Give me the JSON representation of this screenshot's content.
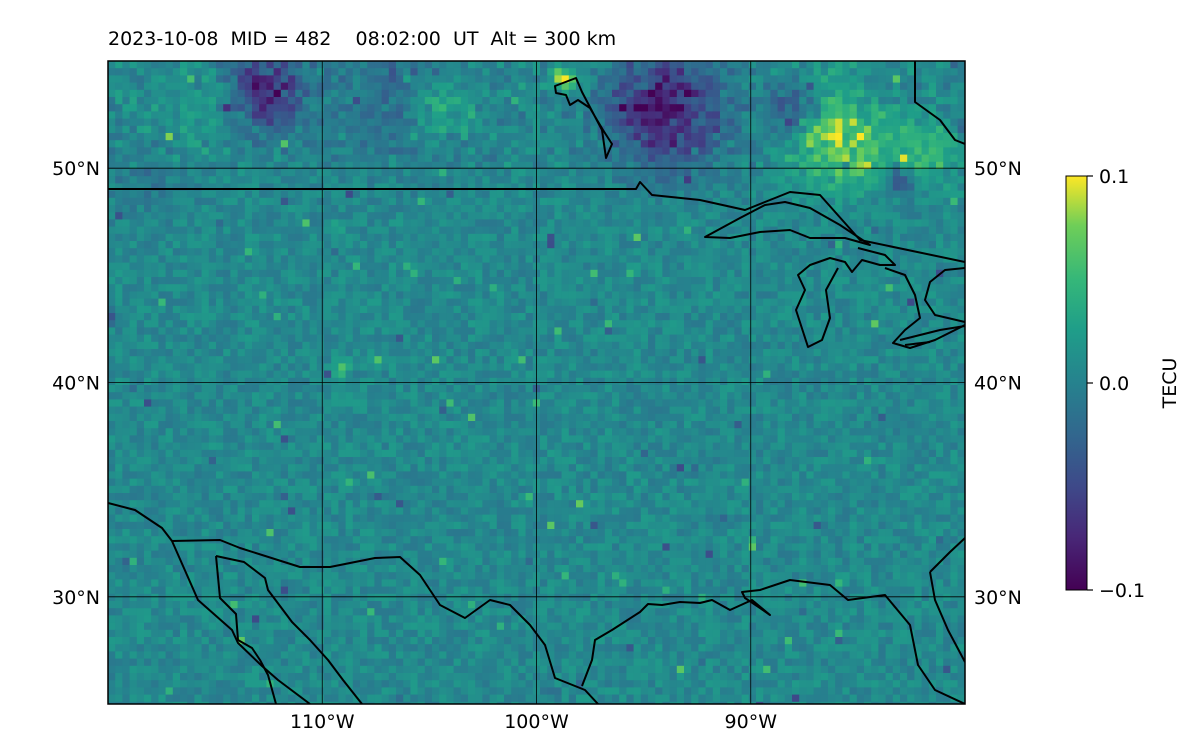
{
  "title": "2023-10-08  MID = 482    08:02:00  UT  Alt = 300 km",
  "map": {
    "lon_range": [
      -120,
      -80
    ],
    "lat_range": [
      25,
      55
    ],
    "lon_ticks": [
      {
        "value": -110,
        "label": "110°W"
      },
      {
        "value": -100,
        "label": "100°W"
      },
      {
        "value": -90,
        "label": "90°W"
      }
    ],
    "lat_ticks": [
      {
        "value": 30,
        "label": "30°N"
      },
      {
        "value": 40,
        "label": "40°N"
      },
      {
        "value": 50,
        "label": "50°N"
      }
    ],
    "colormap": "viridis"
  },
  "colorbar": {
    "label": "TECU",
    "min": -0.1,
    "max": 0.1,
    "ticks": [
      {
        "value": 0.1,
        "label": "0.1"
      },
      {
        "value": 0.0,
        "label": "0.0"
      },
      {
        "value": -0.1,
        "label": "−0.1"
      }
    ]
  },
  "colors": {
    "viridis_low": "#440154",
    "viridis_mid": "#21918c",
    "viridis_high": "#fde725",
    "coastline": "#000000"
  }
}
